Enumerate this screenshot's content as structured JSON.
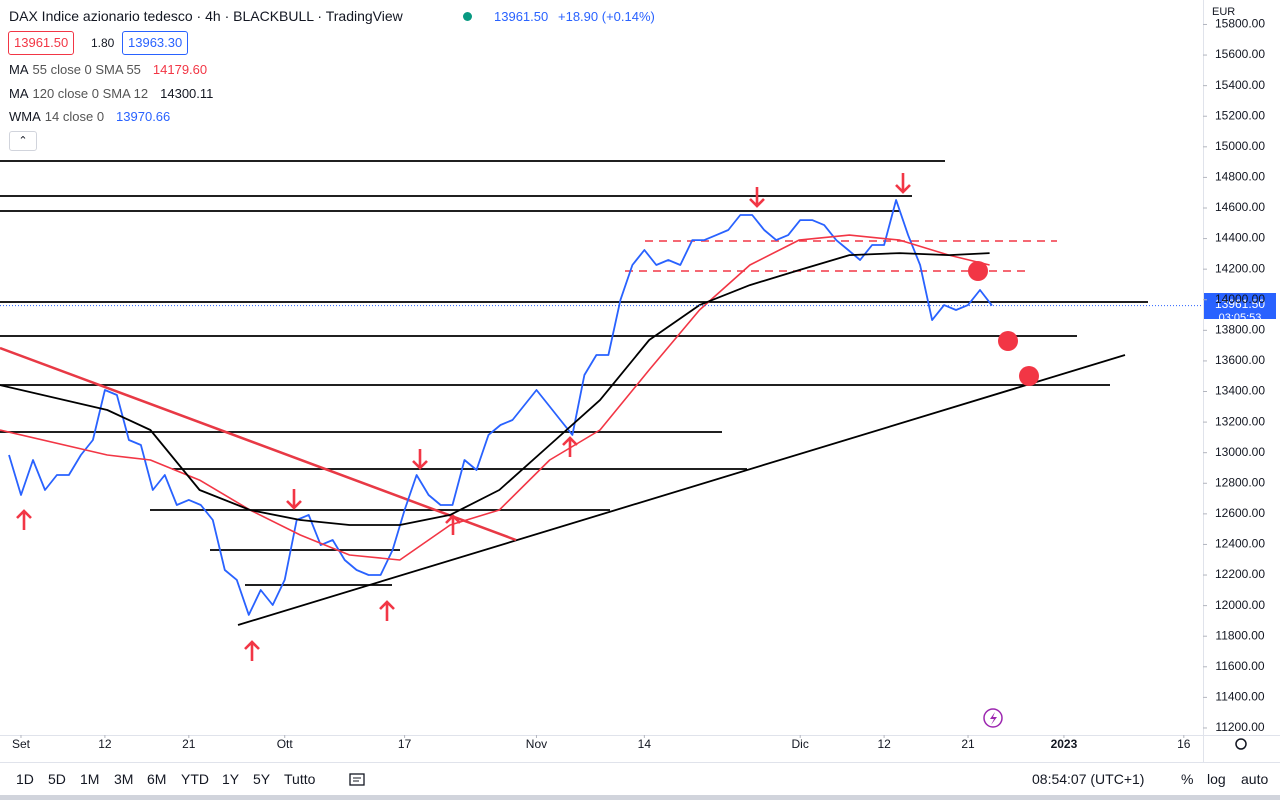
{
  "header": {
    "title": "DAX Indice azionario tedesco · 4h · BLACKBULL · TradingView",
    "price": "13961.50",
    "change": "+18.90 (+0.14%)",
    "bid": "13961.50",
    "spread": "1.80",
    "ask": "13963.30"
  },
  "legend": [
    {
      "name": "MA",
      "params": "55 close 0 SMA 55",
      "value": "14179.60"
    },
    {
      "name": "MA",
      "params": "120 close 0 SMA 12",
      "value": "14300.11"
    },
    {
      "name": "WMA",
      "params": "14 close 0",
      "value": "13970.66"
    }
  ],
  "currency": "EUR",
  "price_tag": {
    "price": "13961.50",
    "countdown": "03:05:53"
  },
  "chart_data": {
    "type": "line",
    "series": [
      {
        "color": "#2962ff",
        "x": [
          -1,
          0,
          1,
          2,
          3,
          4,
          5,
          6,
          7,
          8,
          9,
          10,
          11,
          12,
          13,
          14,
          15,
          16,
          17,
          18,
          19,
          20,
          21,
          22,
          23,
          24,
          25,
          26,
          27,
          28,
          29,
          30,
          31,
          32,
          33,
          34,
          35,
          36,
          37,
          38,
          39,
          40,
          41,
          42,
          43,
          44,
          45,
          46,
          47,
          48,
          49,
          50,
          51,
          52,
          53,
          54,
          55,
          56,
          57,
          58,
          59,
          60,
          61,
          62,
          63,
          64,
          65,
          66,
          67,
          68,
          69,
          70,
          71,
          72,
          73,
          74,
          75,
          76,
          77,
          78,
          79,
          80,
          81
        ],
        "values": [
          12985,
          12723,
          12952,
          12756,
          12854,
          12854,
          12985,
          13083,
          13410,
          13377,
          13083,
          13050,
          12756,
          12854,
          12658,
          12691,
          12658,
          12560,
          12233,
          12168,
          11939,
          12102,
          12004,
          12168,
          12560,
          12593,
          12396,
          12429,
          12298,
          12233,
          12200,
          12200,
          12364,
          12625,
          12854,
          12723,
          12658,
          12658,
          12952,
          12887,
          13116,
          13181,
          13214,
          13312,
          13410,
          13312,
          13214,
          13116,
          13508,
          13639,
          13639,
          13998,
          14227,
          14325,
          14227,
          14260,
          14227,
          14390,
          14390,
          14423,
          14456,
          14554,
          14554,
          14456,
          14390,
          14423,
          14521,
          14521,
          14488,
          14390,
          14325,
          14260,
          14358,
          14358,
          14652,
          14423,
          14227,
          13867,
          13965,
          13933,
          13965,
          14064,
          13961.5
        ]
      },
      {
        "color": "#f23645",
        "x": [
          -1.75,
          7.2,
          10.8,
          14.9,
          19.1,
          23.3,
          27.4,
          31.6,
          35.8,
          39.9,
          44.1,
          48.3,
          52.4,
          56.6,
          60.8,
          64.9,
          69.1,
          73.3,
          77.4,
          80.8
        ],
        "values": [
          13148,
          12985,
          12952,
          12821,
          12625,
          12462,
          12331,
          12298,
          12527,
          12625,
          12952,
          13148,
          13541,
          13933,
          14227,
          14390,
          14423,
          14390,
          14292,
          14227
        ]
      },
      {
        "color": "#000000",
        "x": [
          -1.75,
          7.2,
          10.8,
          14.9,
          19.1,
          23.3,
          27.4,
          31.6,
          35.8,
          39.9,
          44.1,
          48.3,
          52.4,
          56.6,
          60.8,
          64.9,
          69.1,
          73.3,
          77.4,
          80.8
        ],
        "values": [
          13442,
          13279,
          13148,
          12756,
          12625,
          12560,
          12527,
          12527,
          12593,
          12756,
          13050,
          13344,
          13737,
          13965,
          14096,
          14194,
          14292,
          14305,
          14292,
          14305
        ]
      }
    ],
    "xlim": [
      -1.75,
      98.6
    ],
    "xticks": [
      {
        "value": 0,
        "label": "Set"
      },
      {
        "value": 7,
        "label": "12"
      },
      {
        "value": 14,
        "label": "21"
      },
      {
        "value": 22,
        "label": "Ott"
      },
      {
        "value": 32,
        "label": "17"
      },
      {
        "value": 43,
        "label": "Nov"
      },
      {
        "value": 52,
        "label": "14"
      },
      {
        "value": 65,
        "label": "Dic"
      },
      {
        "value": 72,
        "label": "12"
      },
      {
        "value": 79,
        "label": "21"
      },
      {
        "value": 87,
        "label": "2023"
      },
      {
        "value": 97,
        "label": "16"
      }
    ],
    "ylim": [
      11154,
      15960
    ],
    "yticks": [
      {
        "value": 11200,
        "label": "11200.00"
      },
      {
        "value": 11400,
        "label": "11400.00"
      },
      {
        "value": 11600,
        "label": "11600.00"
      },
      {
        "value": 11800,
        "label": "11800.00"
      },
      {
        "value": 12000,
        "label": "12000.00"
      },
      {
        "value": 12200,
        "label": "12200.00"
      },
      {
        "value": 12400,
        "label": "12400.00"
      },
      {
        "value": 12600,
        "label": "12600.00"
      },
      {
        "value": 12800,
        "label": "12800.00"
      },
      {
        "value": 13000,
        "label": "13000.00"
      },
      {
        "value": 13200,
        "label": "13200.00"
      },
      {
        "value": 13400,
        "label": "13400.00"
      },
      {
        "value": 13600,
        "label": "13600.00"
      },
      {
        "value": 13800,
        "label": "13800.00"
      },
      {
        "value": 14000,
        "label": "14000.00"
      },
      {
        "value": 14200,
        "label": "14200.00"
      },
      {
        "value": 14400,
        "label": "14400.00"
      },
      {
        "value": 14600,
        "label": "14600.00"
      },
      {
        "value": 14800,
        "label": "14800.00"
      },
      {
        "value": 15000,
        "label": "15000.00"
      },
      {
        "value": 15200,
        "label": "15200.00"
      },
      {
        "value": 15400,
        "label": "15400.00"
      },
      {
        "value": 15600,
        "label": "15600.00"
      },
      {
        "value": 15800,
        "label": "15800.00"
      }
    ],
    "grid": false
  },
  "toolbar": {
    "ranges": [
      "1D",
      "5D",
      "1M",
      "3M",
      "6M",
      "YTD",
      "1Y",
      "5Y",
      "Tutto"
    ],
    "time": "08:54:07 (UTC+1)",
    "percent": "%",
    "log": "log",
    "auto": "auto"
  }
}
